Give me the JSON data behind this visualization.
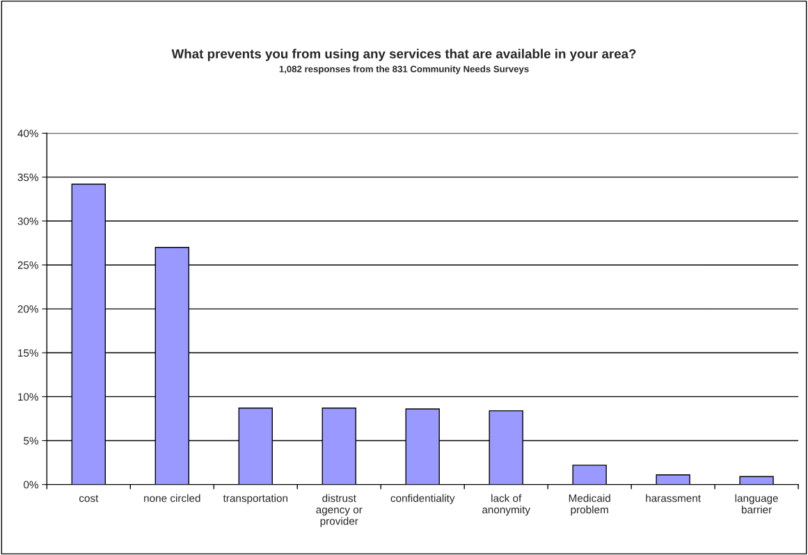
{
  "chart_data": {
    "type": "bar",
    "title": "What prevents you from using any services that are available in your area?",
    "subtitle": "1,082 responses from the 831 Community Needs Surveys",
    "categories": [
      "cost",
      "none circled",
      "transportation",
      "distrust\nagency or\nprovider",
      "confidentiality",
      "lack of\nanonymity",
      "Medicaid\nproblem",
      "harassment",
      "language\nbarrier"
    ],
    "values": [
      34.2,
      27.0,
      8.7,
      8.7,
      8.6,
      8.4,
      2.2,
      1.1,
      0.9
    ],
    "color": "#9999ff",
    "ylim": [
      0,
      40
    ],
    "yticks": [
      {
        "value": 0,
        "label": "0%"
      },
      {
        "value": 5,
        "label": "5%"
      },
      {
        "value": 10,
        "label": "10%"
      },
      {
        "value": 15,
        "label": "15%"
      },
      {
        "value": 20,
        "label": "20%"
      },
      {
        "value": 25,
        "label": "25%"
      },
      {
        "value": 30,
        "label": "30%"
      },
      {
        "value": 35,
        "label": "35%"
      },
      {
        "value": 40,
        "label": "40%"
      }
    ],
    "grid": "y",
    "legend": false
  }
}
